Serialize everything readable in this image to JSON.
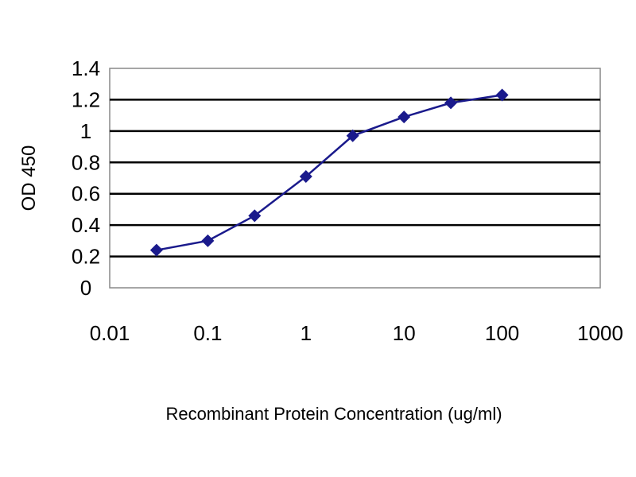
{
  "chart_data": {
    "type": "line",
    "title": "",
    "xlabel": "Recombinant Protein Concentration (ug/ml)",
    "ylabel": "OD 450",
    "x_scale": "log",
    "xlim": [
      0.01,
      1000
    ],
    "ylim": [
      0,
      1.4
    ],
    "x_ticks": [
      "0.01",
      "0.1",
      "1",
      "10",
      "100",
      "1000"
    ],
    "y_ticks": [
      "0",
      "0.2",
      "0.4",
      "0.6",
      "0.8",
      "1",
      "1.2",
      "1.4"
    ],
    "grid": "horizontal",
    "legend": "none",
    "series": [
      {
        "color": "#1a1a8c",
        "marker": "diamond",
        "x": [
          0.03,
          0.1,
          0.3,
          1,
          3,
          10,
          30,
          100
        ],
        "y": [
          0.24,
          0.3,
          0.46,
          0.71,
          0.97,
          1.09,
          1.18,
          1.23
        ]
      }
    ]
  }
}
